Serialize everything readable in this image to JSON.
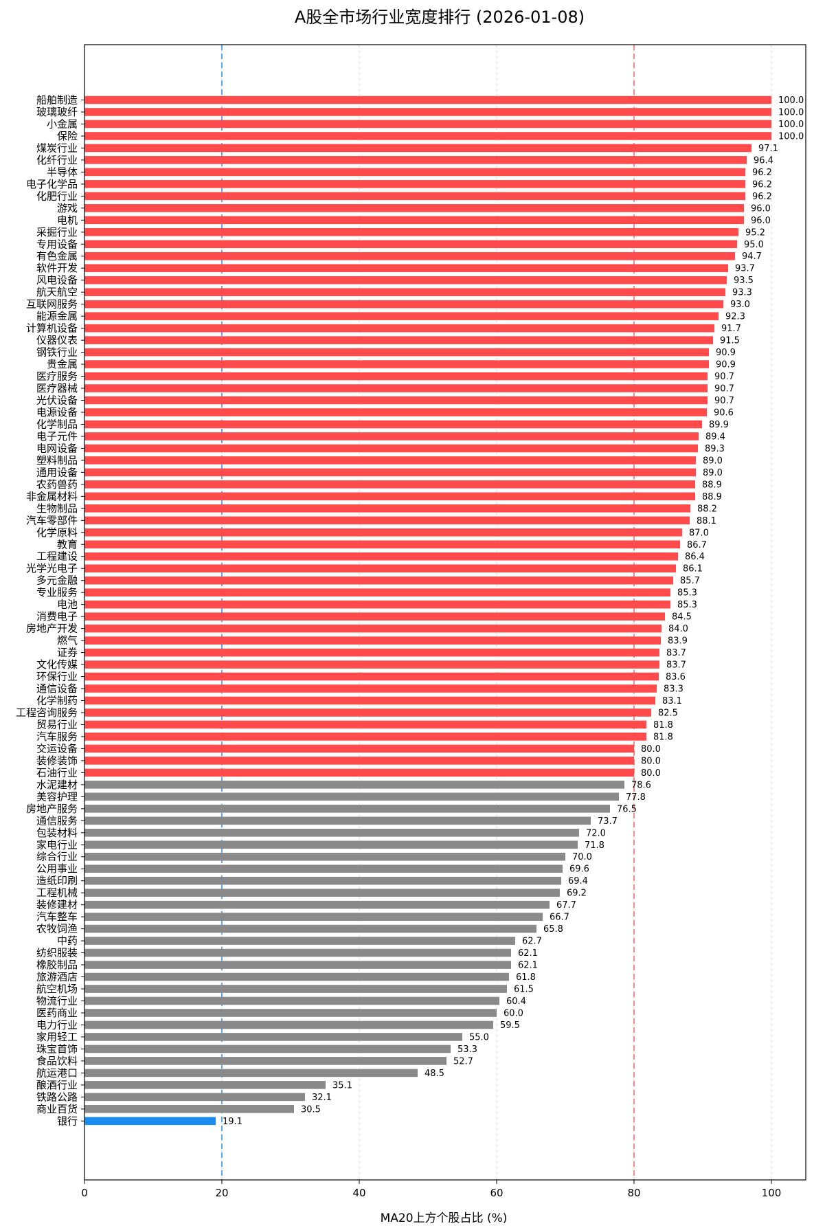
{
  "chart_data": {
    "type": "bar",
    "orientation": "horizontal",
    "title": "A股全市场行业宽度排行 (2026-01-08)",
    "xlabel": "MA20上方个股占比 (%)",
    "ylabel": "",
    "xlim": [
      0,
      105
    ],
    "xticks": [
      0,
      20,
      40,
      60,
      80,
      100
    ],
    "grid": "vertical dashed",
    "reference_lines": [
      {
        "x": 20,
        "color": "#5aaaf2"
      },
      {
        "x": 80,
        "color": "#f48a8a"
      }
    ],
    "colors": {
      "high": "#ff4b4b",
      "mid": "#8a8a8a",
      "low": "#1a8cf0"
    },
    "categories": [
      "船舶制造",
      "玻璃玻纤",
      "小金属",
      "保险",
      "煤炭行业",
      "化纤行业",
      "半导体",
      "电子化学品",
      "化肥行业",
      "游戏",
      "电机",
      "采掘行业",
      "专用设备",
      "有色金属",
      "软件开发",
      "风电设备",
      "航天航空",
      "互联网服务",
      "能源金属",
      "计算机设备",
      "仪器仪表",
      "钢铁行业",
      "贵金属",
      "医疗服务",
      "医疗器械",
      "光伏设备",
      "电源设备",
      "化学制品",
      "电子元件",
      "电网设备",
      "塑料制品",
      "通用设备",
      "农药兽药",
      "非金属材料",
      "生物制品",
      "汽车零部件",
      "化学原料",
      "教育",
      "工程建设",
      "光学光电子",
      "多元金融",
      "专业服务",
      "电池",
      "消费电子",
      "房地产开发",
      "燃气",
      "证券",
      "文化传媒",
      "环保行业",
      "通信设备",
      "化学制药",
      "工程咨询服务",
      "贸易行业",
      "汽车服务",
      "交运设备",
      "装修装饰",
      "石油行业",
      "水泥建材",
      "美容护理",
      "房地产服务",
      "通信服务",
      "包装材料",
      "家电行业",
      "综合行业",
      "公用事业",
      "造纸印刷",
      "工程机械",
      "装修建材",
      "汽车整车",
      "农牧饲渔",
      "中药",
      "纺织服装",
      "橡胶制品",
      "旅游酒店",
      "航空机场",
      "物流行业",
      "医药商业",
      "电力行业",
      "家用轻工",
      "珠宝首饰",
      "食品饮料",
      "航运港口",
      "酿酒行业",
      "铁路公路",
      "商业百货",
      "银行"
    ],
    "values": [
      100.0,
      100.0,
      100.0,
      100.0,
      97.1,
      96.4,
      96.2,
      96.2,
      96.2,
      96.0,
      96.0,
      95.2,
      95.0,
      94.7,
      93.7,
      93.5,
      93.3,
      93.0,
      92.3,
      91.7,
      91.5,
      90.9,
      90.9,
      90.7,
      90.7,
      90.7,
      90.6,
      89.9,
      89.4,
      89.3,
      89.0,
      89.0,
      88.9,
      88.9,
      88.2,
      88.1,
      87.0,
      86.7,
      86.4,
      86.1,
      85.7,
      85.3,
      85.3,
      84.5,
      84.0,
      83.9,
      83.7,
      83.7,
      83.6,
      83.3,
      83.1,
      82.5,
      81.8,
      81.8,
      80.0,
      80.0,
      80.0,
      78.6,
      77.8,
      76.5,
      73.7,
      72.0,
      71.8,
      70.0,
      69.6,
      69.4,
      69.2,
      67.7,
      66.7,
      65.8,
      62.7,
      62.1,
      62.1,
      61.8,
      61.5,
      60.4,
      60.0,
      59.5,
      55.0,
      53.3,
      52.7,
      48.5,
      35.1,
      32.1,
      30.5,
      19.1
    ]
  }
}
